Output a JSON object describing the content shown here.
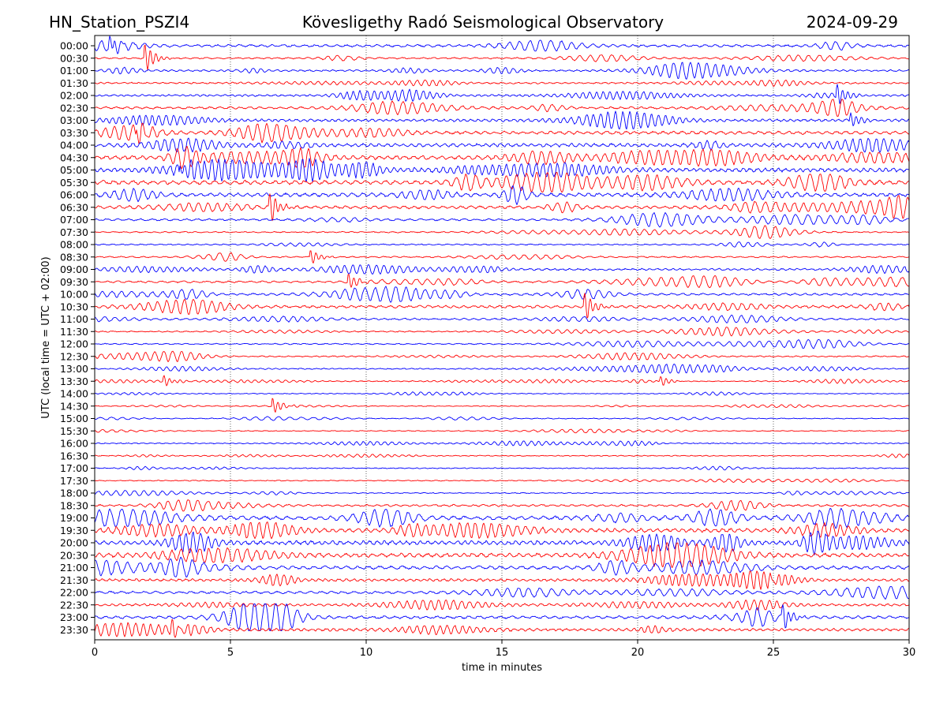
{
  "chart_data": {
    "type": "line",
    "title_left": "HN_Station_PSZI4",
    "title_center": "Kövesligethy Radó Seismological Observatory",
    "title_right": "2024-09-29",
    "xlabel": "time in minutes",
    "ylabel": "UTC (local time = UTC + 02:00)",
    "xlim": [
      0,
      30
    ],
    "x_ticks": [
      "0",
      "5",
      "10",
      "15",
      "20",
      "25",
      "30"
    ],
    "x_tick_values": [
      0,
      5,
      10,
      15,
      20,
      25,
      30
    ],
    "grid": "vertical dotted at x ticks",
    "series_colors": [
      "#0000ff",
      "#ff0000"
    ],
    "rows": [
      {
        "label": "00:00",
        "activity": 0.55
      },
      {
        "label": "00:30",
        "activity": 0.3
      },
      {
        "label": "01:00",
        "activity": 0.35
      },
      {
        "label": "01:30",
        "activity": 0.3
      },
      {
        "label": "02:00",
        "activity": 0.4
      },
      {
        "label": "02:30",
        "activity": 0.5
      },
      {
        "label": "03:00",
        "activity": 0.6
      },
      {
        "label": "03:30",
        "activity": 0.75
      },
      {
        "label": "04:00",
        "activity": 0.85
      },
      {
        "label": "04:30",
        "activity": 0.95
      },
      {
        "label": "05:00",
        "activity": 1.0
      },
      {
        "label": "05:30",
        "activity": 1.0
      },
      {
        "label": "06:00",
        "activity": 0.9
      },
      {
        "label": "06:30",
        "activity": 0.7
      },
      {
        "label": "07:00",
        "activity": 0.45
      },
      {
        "label": "07:30",
        "activity": 0.2
      },
      {
        "label": "08:00",
        "activity": 0.2
      },
      {
        "label": "08:30",
        "activity": 0.25
      },
      {
        "label": "09:00",
        "activity": 0.4
      },
      {
        "label": "09:30",
        "activity": 0.4
      },
      {
        "label": "10:00",
        "activity": 0.45
      },
      {
        "label": "10:30",
        "activity": 0.6
      },
      {
        "label": "11:00",
        "activity": 0.35
      },
      {
        "label": "11:30",
        "activity": 0.2
      },
      {
        "label": "12:00",
        "activity": 0.2
      },
      {
        "label": "12:30",
        "activity": 0.2
      },
      {
        "label": "13:00",
        "activity": 0.2
      },
      {
        "label": "13:30",
        "activity": 0.12
      },
      {
        "label": "14:00",
        "activity": 0.08
      },
      {
        "label": "14:30",
        "activity": 0.08
      },
      {
        "label": "15:00",
        "activity": 0.1
      },
      {
        "label": "15:30",
        "activity": 0.1
      },
      {
        "label": "16:00",
        "activity": 0.15
      },
      {
        "label": "16:30",
        "activity": 0.12
      },
      {
        "label": "17:00",
        "activity": 0.12
      },
      {
        "label": "17:30",
        "activity": 0.12
      },
      {
        "label": "18:00",
        "activity": 0.12
      },
      {
        "label": "18:30",
        "activity": 0.45
      },
      {
        "label": "19:00",
        "activity": 0.9
      },
      {
        "label": "19:30",
        "activity": 0.95
      },
      {
        "label": "20:00",
        "activity": 1.0
      },
      {
        "label": "20:30",
        "activity": 1.0
      },
      {
        "label": "21:00",
        "activity": 0.8
      },
      {
        "label": "21:30",
        "activity": 0.6
      },
      {
        "label": "22:00",
        "activity": 0.55
      },
      {
        "label": "22:30",
        "activity": 0.5
      },
      {
        "label": "23:00",
        "activity": 0.65
      },
      {
        "label": "23:30",
        "activity": 0.6
      }
    ],
    "events": [
      {
        "row": "00:00",
        "minute": 0.6,
        "strength": 1.0
      },
      {
        "row": "00:30",
        "minute": 1.9,
        "strength": 1.6
      },
      {
        "row": "02:00",
        "minute": 27.4,
        "strength": 1.3
      },
      {
        "row": "03:00",
        "minute": 27.9,
        "strength": 0.9
      },
      {
        "row": "03:30",
        "minute": 1.6,
        "strength": 0.8
      },
      {
        "row": "05:00",
        "minute": 3.2,
        "strength": 1.0
      },
      {
        "row": "06:30",
        "minute": 6.5,
        "strength": 1.6
      },
      {
        "row": "08:30",
        "minute": 8.0,
        "strength": 0.8
      },
      {
        "row": "09:30",
        "minute": 9.4,
        "strength": 0.9
      },
      {
        "row": "10:30",
        "minute": 18.1,
        "strength": 1.6
      },
      {
        "row": "13:30",
        "minute": 2.6,
        "strength": 0.6
      },
      {
        "row": "13:30",
        "minute": 20.9,
        "strength": 0.6
      },
      {
        "row": "14:30",
        "minute": 6.6,
        "strength": 0.9
      },
      {
        "row": "21:30",
        "minute": 24.9,
        "strength": 0.8
      },
      {
        "row": "23:00",
        "minute": 25.4,
        "strength": 1.3
      },
      {
        "row": "23:30",
        "minute": 2.9,
        "strength": 0.9
      }
    ]
  }
}
